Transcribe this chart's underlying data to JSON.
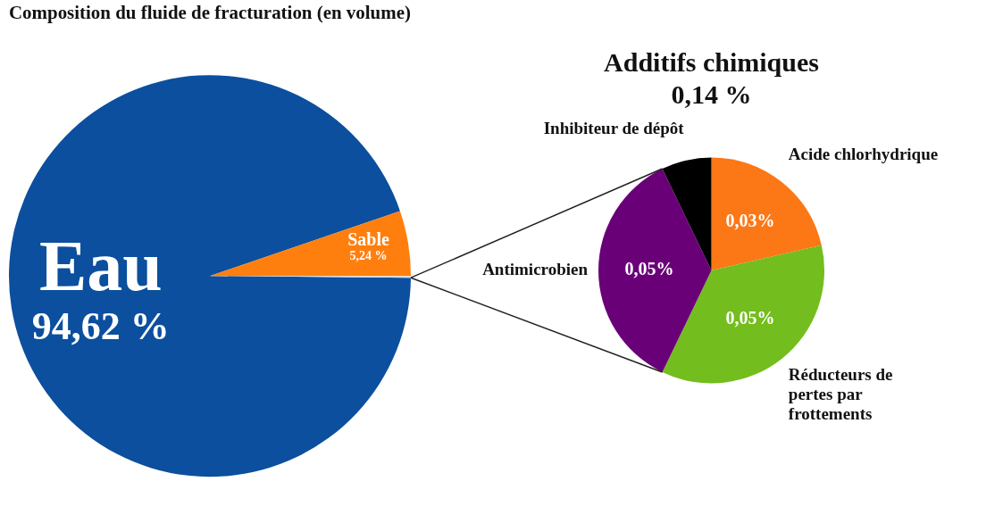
{
  "chart_data": [
    {
      "type": "pie",
      "title": "Composition du fluide de fracturation (en volume)",
      "categories": [
        "Eau",
        "Sable",
        null
      ],
      "values": [
        94.62,
        5.24,
        0.14
      ],
      "colors": [
        "#0b4f9e",
        "#ff7f0e",
        "#d9d9d9"
      ],
      "value_labels": [
        "94,62 %",
        "5,24 %",
        null
      ]
    },
    {
      "type": "pie",
      "title": "Additifs chimiques",
      "subtitle": "0,14 %",
      "categories": [
        "Acide chlorhydrique",
        "Réducteurs de pertes par frottements",
        "Antimicrobien",
        "Inhibiteur de dépôt"
      ],
      "values": [
        0.03,
        0.05,
        0.05,
        0.01
      ],
      "colors": [
        "#fc7716",
        "#73bd1e",
        "#6a0078",
        "#000000"
      ],
      "value_labels": [
        "0,03%",
        "0,05%",
        "0,05%",
        null
      ]
    }
  ]
}
